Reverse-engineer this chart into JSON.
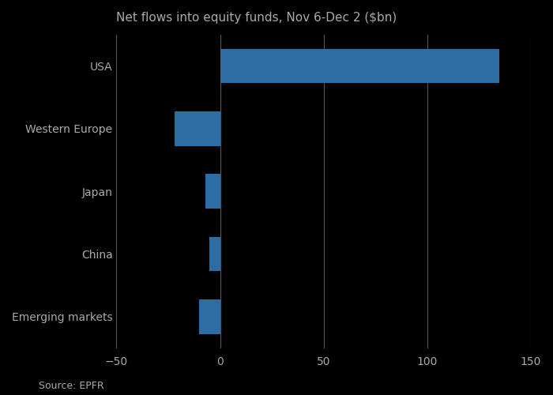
{
  "categories": [
    "Emerging markets",
    "China",
    "Japan",
    "Western Europe",
    "USA"
  ],
  "values": [
    -10,
    -5,
    -7,
    -22,
    135
  ],
  "bar_color": "#2e6da4",
  "title": "Net flows into equity funds, Nov 6-Dec 2 ($bn)",
  "title_fontsize": 11,
  "source": "Source: EPFR",
  "xlim": [
    -50,
    150
  ],
  "xticks": [
    -50,
    0,
    50,
    100,
    150
  ],
  "background_color": "#000000",
  "grid_color": "#555555",
  "text_color": "#aaaaaa",
  "label_fontsize": 10,
  "tick_fontsize": 10
}
